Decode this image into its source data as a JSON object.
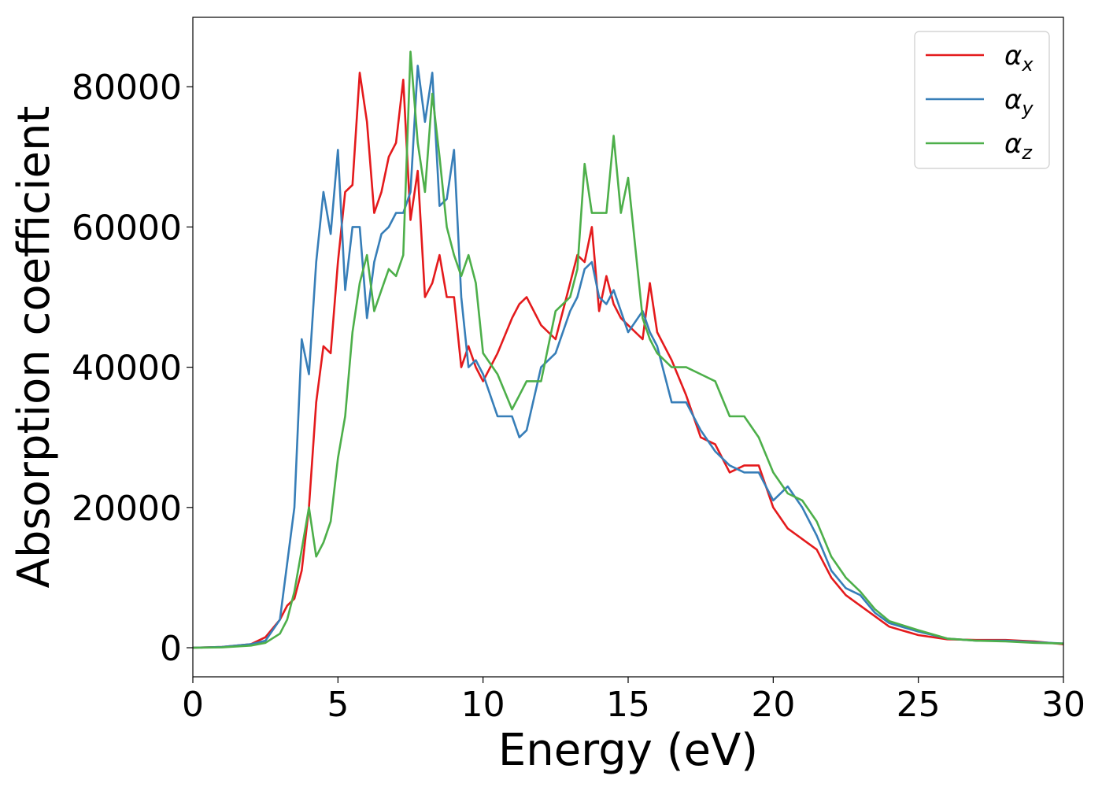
{
  "chart_data": {
    "type": "line",
    "xlabel": "Energy (eV)",
    "ylabel": "Absorption coefficient",
    "xlim": [
      0,
      30
    ],
    "ylim": [
      -4150,
      89900
    ],
    "xticks": [
      0,
      5,
      10,
      15,
      20,
      25,
      30
    ],
    "yticks": [
      0,
      20000,
      40000,
      60000,
      80000
    ],
    "legend": "upper right",
    "grid": false,
    "x": [
      0,
      1,
      2,
      2.5,
      3,
      3.25,
      3.5,
      3.75,
      4,
      4.25,
      4.5,
      4.75,
      5,
      5.25,
      5.5,
      5.75,
      6,
      6.25,
      6.5,
      6.75,
      7,
      7.25,
      7.5,
      7.75,
      8,
      8.25,
      8.5,
      8.75,
      9,
      9.25,
      9.5,
      9.75,
      10,
      10.5,
      11,
      11.25,
      11.5,
      12,
      12.5,
      13,
      13.25,
      13.5,
      13.75,
      14,
      14.25,
      14.5,
      14.75,
      15,
      15.5,
      15.75,
      16,
      16.5,
      17,
      17.5,
      18,
      18.5,
      19,
      19.5,
      20,
      20.5,
      21,
      21.5,
      22,
      22.5,
      23,
      23.5,
      24,
      25,
      26,
      27,
      28,
      29,
      30
    ],
    "series": [
      {
        "name": "αx",
        "color": "#e41a1c",
        "values": [
          0,
          100,
          500,
          1500,
          4000,
          6000,
          7000,
          11000,
          20000,
          35000,
          43000,
          42000,
          55000,
          65000,
          66000,
          82000,
          75000,
          62000,
          65000,
          70000,
          72000,
          81000,
          61000,
          68000,
          50000,
          52000,
          56000,
          50000,
          50000,
          40000,
          43000,
          40000,
          38000,
          42000,
          47000,
          49000,
          50000,
          46000,
          44000,
          52000,
          56000,
          55000,
          60000,
          48000,
          53000,
          49000,
          47000,
          46000,
          44000,
          52000,
          45000,
          41000,
          36000,
          30000,
          29000,
          25000,
          26000,
          26000,
          20000,
          17000,
          15500,
          14000,
          10000,
          7500,
          6000,
          4500,
          3000,
          1800,
          1200,
          1100,
          1100,
          900,
          500
        ]
      },
      {
        "name": "αy",
        "color": "#377eb8",
        "values": [
          0,
          100,
          500,
          1000,
          4000,
          12000,
          20000,
          44000,
          39000,
          55000,
          65000,
          59000,
          71000,
          51000,
          60000,
          60000,
          47000,
          55000,
          59000,
          60000,
          62000,
          62000,
          65000,
          83000,
          75000,
          82000,
          63000,
          64000,
          71000,
          50000,
          40000,
          41000,
          39000,
          33000,
          33000,
          30000,
          31000,
          40000,
          42000,
          48000,
          50000,
          54000,
          55000,
          50000,
          49000,
          51000,
          48000,
          45000,
          48000,
          45000,
          43000,
          35000,
          35000,
          31000,
          28000,
          26000,
          25000,
          25000,
          21000,
          23000,
          20000,
          16000,
          11000,
          8500,
          7500,
          5000,
          3500,
          2300,
          1300,
          1000,
          1000,
          800,
          600
        ]
      },
      {
        "name": "αz",
        "color": "#4daf4a",
        "values": [
          0,
          50,
          300,
          700,
          2000,
          4000,
          8000,
          14000,
          20000,
          13000,
          15000,
          18000,
          27000,
          33000,
          45000,
          52000,
          56000,
          48000,
          51000,
          54000,
          53000,
          56000,
          85000,
          72000,
          65000,
          79000,
          70000,
          60000,
          56000,
          53000,
          56000,
          52000,
          42000,
          39000,
          34000,
          36000,
          38000,
          38000,
          48000,
          50000,
          54000,
          69000,
          62000,
          62000,
          62000,
          73000,
          62000,
          67000,
          47000,
          44000,
          42000,
          40000,
          40000,
          39000,
          38000,
          33000,
          33000,
          30000,
          25000,
          22000,
          21000,
          18000,
          13000,
          10000,
          8000,
          5500,
          3800,
          2500,
          1300,
          1000,
          900,
          700,
          600
        ]
      }
    ]
  }
}
